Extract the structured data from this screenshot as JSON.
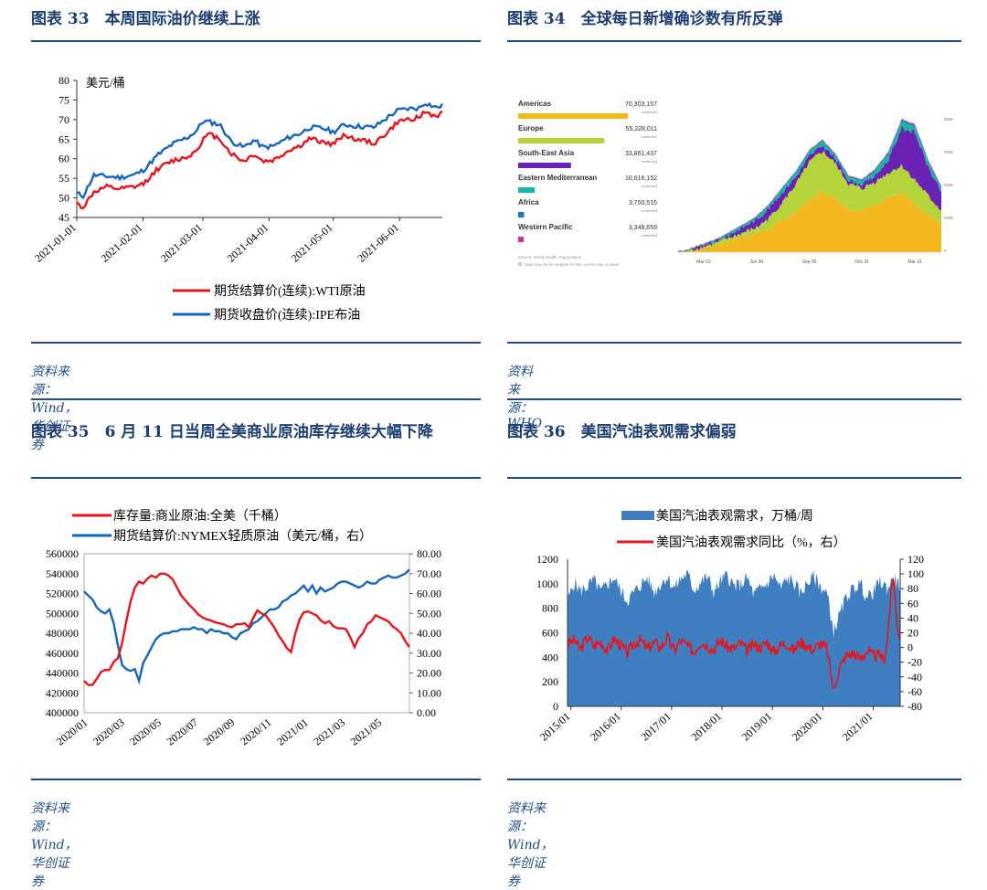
{
  "panels": {
    "p33": {
      "title": "图表 33　本周国际油价继续上涨",
      "source": "资料来源：Wind，华创证券"
    },
    "p34": {
      "title": "图表 34　全球每日新增确诊数有所反弹",
      "source": "资料来源：WHO"
    },
    "p35": {
      "title": "图表 35　6 月 11 日当周全美商业原油库存继续大幅下降",
      "source": "资料来源：Wind，华创证券"
    },
    "p36": {
      "title": "图表 36　美国汽油表观需求偏弱",
      "source": "资料来源：Wind，华创证券"
    }
  },
  "colors": {
    "red": "#e8141c",
    "blue": "#1565c0",
    "steel": "#4a86c5",
    "rule": "#1e4a86"
  },
  "chart_data": [
    {
      "id": "oil_prices",
      "type": "line",
      "unit_label": "美元/桶",
      "ylim": [
        45,
        80
      ],
      "yticks": [
        45,
        50,
        55,
        60,
        65,
        70,
        75,
        80
      ],
      "xticks": [
        "2021-01-01",
        "2021-02-01",
        "2021-03-01",
        "2021-04-01",
        "2021-05-01",
        "2021-06-01"
      ],
      "series": [
        {
          "name": "期货结算价(连续):WTI原油",
          "color": "#e8141c",
          "x": [
            0,
            3,
            8,
            14,
            20,
            27,
            31,
            38,
            45,
            52,
            56,
            59,
            62,
            67,
            72,
            78,
            83,
            87,
            92,
            97,
            100,
            104,
            109,
            115,
            120,
            125,
            128,
            133,
            139,
            145,
            150,
            155,
            160,
            163,
            168,
            171
          ],
          "values": [
            48.5,
            47.6,
            51.5,
            52.8,
            52.2,
            52.8,
            53.5,
            57.5,
            59.5,
            60.5,
            62.2,
            64.9,
            66.3,
            65.1,
            61.4,
            59.3,
            61.2,
            59.3,
            59.6,
            61.3,
            62.4,
            63.1,
            65.1,
            64.3,
            63.6,
            66.3,
            65.3,
            64.8,
            63.9,
            66.5,
            69.3,
            70.1,
            70.5,
            71.9,
            70.8,
            71.6
          ]
        },
        {
          "name": "期货收盘价(连续):IPE布油",
          "color": "#1565c0",
          "x": [
            0,
            3,
            8,
            14,
            20,
            27,
            31,
            38,
            45,
            52,
            56,
            59,
            62,
            67,
            72,
            78,
            83,
            87,
            92,
            97,
            100,
            104,
            109,
            115,
            120,
            125,
            128,
            133,
            139,
            145,
            150,
            155,
            160,
            163,
            168,
            171
          ],
          "values": [
            51.1,
            50.5,
            55.8,
            55.5,
            55.2,
            55.9,
            57.0,
            61.0,
            63.8,
            65.5,
            67.1,
            69.6,
            69.4,
            68.7,
            64.5,
            62.9,
            64.8,
            62.9,
            63.2,
            64.8,
            65.6,
            66.3,
            68.0,
            67.8,
            66.8,
            68.7,
            68.5,
            68.2,
            68.0,
            70.4,
            72.3,
            72.8,
            72.9,
            74.3,
            73.1,
            73.5
          ]
        }
      ]
    },
    {
      "id": "who_cases",
      "type": "area",
      "regions": [
        {
          "name": "Americas",
          "value": "70,303,157",
          "color": "#f3b81e"
        },
        {
          "name": "Europe",
          "value": "55,228,011",
          "color": "#b5d43b"
        },
        {
          "name": "South-East Asia",
          "value": "33,861,437",
          "color": "#6a22b5"
        },
        {
          "name": "Eastern Mediterranean",
          "value": "10,616,152",
          "color": "#18b7a0"
        },
        {
          "name": "Africa",
          "value": "3,750,515",
          "color": "#1677c9"
        },
        {
          "name": "Western Pacific",
          "value": "3,348,659",
          "color": "#d42d97"
        }
      ],
      "confirmed_label": "confirmed",
      "note1": "Source: World Health Organization",
      "note2": "Data may be incomplete for the current day or week",
      "xticks": [
        "Mar 01",
        "Jun 30",
        "Sep 30",
        "Dec 31",
        "Mar 31"
      ],
      "yticks": [
        "800k",
        "600k",
        "400k",
        "200k",
        "0"
      ],
      "stack_x": [
        0,
        0.05,
        0.1,
        0.15,
        0.2,
        0.25,
        0.3,
        0.35,
        0.4,
        0.45,
        0.5,
        0.55,
        0.6,
        0.65,
        0.7,
        0.75,
        0.8,
        0.85,
        0.9,
        0.95,
        1
      ],
      "stack_values": [
        [
          0,
          10,
          30,
          50,
          80,
          110,
          130,
          160,
          220,
          280,
          360,
          420,
          380,
          300,
          290,
          340,
          380,
          400,
          330,
          260,
          190
        ],
        [
          0,
          5,
          10,
          15,
          20,
          25,
          40,
          80,
          130,
          190,
          260,
          280,
          230,
          170,
          150,
          150,
          170,
          200,
          170,
          130,
          100
        ],
        [
          0,
          3,
          8,
          15,
          25,
          40,
          55,
          70,
          70,
          55,
          45,
          40,
          35,
          30,
          30,
          40,
          90,
          260,
          330,
          200,
          120
        ],
        [
          0,
          2,
          5,
          8,
          10,
          12,
          15,
          20,
          25,
          30,
          35,
          30,
          25,
          20,
          25,
          35,
          45,
          45,
          40,
          35,
          30
        ],
        [
          0,
          1,
          2,
          3,
          4,
          5,
          6,
          6,
          6,
          6,
          6,
          6,
          6,
          6,
          6,
          7,
          8,
          9,
          9,
          9,
          9
        ],
        [
          0,
          1,
          1,
          2,
          2,
          2,
          3,
          3,
          3,
          3,
          4,
          4,
          4,
          4,
          4,
          5,
          6,
          7,
          8,
          8,
          8
        ]
      ]
    },
    {
      "id": "crude_inventory",
      "type": "line",
      "legend": [
        "库存量:商业原油:全美（千桶）",
        "期货结算价:NYMEX轻质原油（美元/桶，右）"
      ],
      "y_left": [
        400000,
        560000
      ],
      "y_left_ticks": [
        "560000",
        "540000",
        "520000",
        "500000",
        "480000",
        "460000",
        "440000",
        "420000",
        "400000"
      ],
      "y_right": [
        0,
        80
      ],
      "y_right_ticks": [
        "80.00",
        "70.00",
        "60.00",
        "50.00",
        "40.00",
        "30.00",
        "20.00",
        "10.00",
        "0.00"
      ],
      "xticks": [
        "2020/01",
        "2020/03",
        "2020/05",
        "2020/07",
        "2020/09",
        "2020/11",
        "2021/01",
        "2021/03",
        "2021/05"
      ],
      "series": [
        {
          "name": "库存量:商业原油:全美（千桶）",
          "axis": "left",
          "color": "#e8141c",
          "x": [
            0,
            1,
            2,
            3,
            4,
            5,
            6,
            7,
            8,
            9,
            10,
            11,
            12,
            13,
            14,
            15,
            16,
            17,
            18,
            19,
            20,
            21,
            22,
            23,
            24,
            25,
            26,
            27,
            28,
            29,
            30,
            31,
            32,
            33,
            34,
            35,
            36,
            37,
            38,
            39,
            40,
            41,
            42,
            43,
            44,
            45,
            46,
            47,
            48,
            49,
            50,
            51,
            52,
            53,
            54,
            55,
            56,
            57,
            58,
            59,
            60,
            61,
            62,
            63,
            64,
            65,
            66,
            67,
            68,
            69,
            70,
            71,
            72,
            73,
            74,
            75,
            76,
            77
          ],
          "values": [
            432000,
            428000,
            428000,
            434000,
            441000,
            443000,
            443000,
            451000,
            455000,
            470000,
            492000,
            512000,
            526000,
            532000,
            530000,
            535000,
            538000,
            536000,
            540000,
            540000,
            538000,
            534000,
            526000,
            518000,
            513000,
            508000,
            504000,
            499000,
            496000,
            494000,
            493000,
            491000,
            490000,
            489000,
            487000,
            486000,
            489000,
            489000,
            490000,
            486000,
            495000,
            503000,
            500000,
            498000,
            492000,
            486000,
            478000,
            472000,
            465000,
            461000,
            480000,
            494000,
            501000,
            502000,
            500000,
            498000,
            493000,
            490000,
            492000,
            487000,
            485000,
            485000,
            484000,
            476000,
            466000,
            475000,
            480000,
            489000,
            492000,
            498000,
            496000,
            494000,
            492000,
            487000,
            484000,
            480000,
            472000,
            466000
          ]
        },
        {
          "name": "期货结算价:NYMEX轻质原油（美元/桶，右）",
          "axis": "right",
          "color": "#1565c0",
          "x": [
            0,
            1,
            2,
            3,
            4,
            5,
            6,
            7,
            8,
            9,
            10,
            11,
            12,
            13,
            14,
            15,
            16,
            17,
            18,
            19,
            20,
            21,
            22,
            23,
            24,
            25,
            26,
            27,
            28,
            29,
            30,
            31,
            32,
            33,
            34,
            35,
            36,
            37,
            38,
            39,
            40,
            41,
            42,
            43,
            44,
            45,
            46,
            47,
            48,
            49,
            50,
            51,
            52,
            53,
            54,
            55,
            56,
            57,
            58,
            59,
            60,
            61,
            62,
            63,
            64,
            65,
            66,
            67,
            68,
            69,
            70,
            71,
            72,
            73,
            74,
            75,
            76,
            77
          ],
          "values": [
            61,
            59,
            57,
            53,
            51,
            50,
            52,
            45,
            34,
            24,
            22,
            21,
            22,
            16,
            25,
            29,
            33,
            37,
            39,
            40,
            40,
            41,
            41,
            42,
            42,
            42,
            43,
            42,
            42,
            40,
            42,
            41,
            41,
            40,
            40,
            38,
            37,
            40,
            41,
            42,
            45,
            46,
            48,
            50,
            52,
            52,
            53,
            56,
            57,
            59,
            60,
            62,
            64,
            61,
            64,
            60,
            63,
            61,
            62,
            63,
            65,
            66,
            66,
            65,
            64,
            63,
            64,
            66,
            65,
            65,
            67,
            68,
            69,
            68,
            68,
            69,
            70,
            72
          ]
        }
      ]
    },
    {
      "id": "gasoline_demand",
      "type": "area+line",
      "legend": [
        "美国汽油表观需求，万桶/周",
        "美国汽油表观需求同比（%，右）"
      ],
      "y_left": [
        0,
        1200
      ],
      "y_left_ticks": [
        "1200",
        "1000",
        "800",
        "600",
        "400",
        "200",
        "0"
      ],
      "y_right": [
        -80,
        120
      ],
      "y_right_ticks": [
        "120",
        "100",
        "80",
        "60",
        "40",
        "20",
        "0",
        "-20",
        "-40",
        "-60",
        "-80"
      ],
      "xticks": [
        "2015/01",
        "2016/01",
        "2017/01",
        "2018/01",
        "2019/01",
        "2020/01",
        "2021/01"
      ],
      "area_series": {
        "name": "美国汽油表观需求，万桶/周",
        "color": "#3f7fc1",
        "x": [
          0,
          0.02,
          0.04,
          0.06,
          0.08,
          0.1,
          0.12,
          0.14,
          0.16,
          0.18,
          0.2,
          0.22,
          0.24,
          0.26,
          0.28,
          0.3,
          0.32,
          0.34,
          0.36,
          0.38,
          0.4,
          0.42,
          0.44,
          0.46,
          0.48,
          0.5,
          0.52,
          0.54,
          0.56,
          0.58,
          0.6,
          0.62,
          0.64,
          0.66,
          0.68,
          0.7,
          0.72,
          0.74,
          0.76,
          0.78,
          0.8,
          0.82,
          0.84,
          0.86,
          0.88,
          0.9,
          0.92,
          0.94,
          0.96,
          0.98,
          1
        ],
        "values": [
          860,
          1010,
          940,
          980,
          1030,
          930,
          1000,
          1050,
          940,
          860,
          930,
          990,
          1050,
          930,
          1000,
          1060,
          960,
          1040,
          1080,
          950,
          1010,
          1060,
          930,
          1020,
          1070,
          980,
          990,
          1050,
          910,
          960,
          1000,
          1070,
          960,
          1040,
          1010,
          920,
          1000,
          1060,
          980,
          920,
          610,
          760,
          900,
          960,
          1010,
          880,
          940,
          1020,
          960,
          1040,
          980
        ]
      },
      "line_series": {
        "name": "美国汽油表观需求同比（%，右）",
        "color": "#e8141c",
        "x": [
          0,
          0.02,
          0.04,
          0.06,
          0.08,
          0.1,
          0.12,
          0.14,
          0.16,
          0.18,
          0.2,
          0.22,
          0.24,
          0.26,
          0.28,
          0.3,
          0.32,
          0.34,
          0.36,
          0.38,
          0.4,
          0.42,
          0.44,
          0.46,
          0.48,
          0.5,
          0.52,
          0.54,
          0.56,
          0.58,
          0.6,
          0.62,
          0.64,
          0.66,
          0.68,
          0.7,
          0.72,
          0.74,
          0.76,
          0.78,
          0.8,
          0.81,
          0.82,
          0.84,
          0.86,
          0.88,
          0.9,
          0.92,
          0.94,
          0.95,
          0.96,
          0.97,
          0.98,
          0.99,
          1
        ],
        "values": [
          5,
          10,
          -3,
          15,
          2,
          8,
          -5,
          12,
          3,
          -8,
          6,
          10,
          -2,
          7,
          0,
          14,
          -4,
          9,
          2,
          -6,
          8,
          3,
          -3,
          10,
          1,
          -2,
          6,
          -5,
          4,
          0,
          7,
          -6,
          3,
          5,
          -4,
          8,
          2,
          -3,
          6,
          -2,
          -60,
          -40,
          -25,
          -10,
          -8,
          -15,
          -5,
          -12,
          -10,
          -18,
          5,
          60,
          100,
          30,
          15
        ]
      }
    }
  ]
}
